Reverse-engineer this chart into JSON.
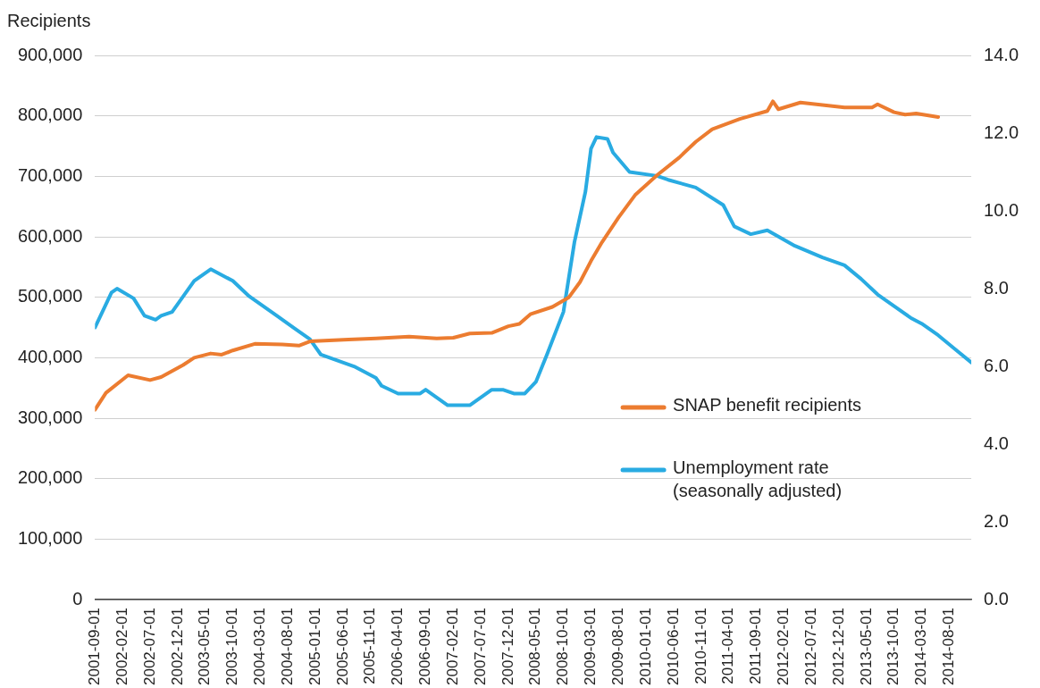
{
  "chart_data": {
    "type": "line",
    "ylabel": "Recipients",
    "xlim": [
      "2001-09-01",
      "2014-12-01"
    ],
    "xticks": [
      "2001-09-01",
      "2002-02-01",
      "2002-07-01",
      "2002-12-01",
      "2003-05-01",
      "2003-10-01",
      "2004-03-01",
      "2004-08-01",
      "2005-01-01",
      "2005-06-01",
      "2005-11-01",
      "2006-04-01",
      "2006-09-01",
      "2007-02-01",
      "2007-07-01",
      "2007-12-01",
      "2008-05-01",
      "2008-10-01",
      "2009-03-01",
      "2009-08-01",
      "2010-01-01",
      "2010-06-01",
      "2010-11-01",
      "2011-04-01",
      "2011-09-01",
      "2012-02-01",
      "2012-07-01",
      "2012-12-01",
      "2013-05-01",
      "2013-10-01",
      "2014-03-01",
      "2014-08-01"
    ],
    "ylim": [
      0,
      900000
    ],
    "yticks": [
      {
        "value": 0,
        "label": "0"
      },
      {
        "value": 100000,
        "label": "100,000"
      },
      {
        "value": 200000,
        "label": "200,000"
      },
      {
        "value": 300000,
        "label": "300,000"
      },
      {
        "value": 400000,
        "label": "400,000"
      },
      {
        "value": 500000,
        "label": "500,000"
      },
      {
        "value": 600000,
        "label": "600,000"
      },
      {
        "value": 700000,
        "label": "700,000"
      },
      {
        "value": 800000,
        "label": "800,000"
      },
      {
        "value": 900000,
        "label": "900,000"
      }
    ],
    "y2lim": [
      0,
      14
    ],
    "y2ticks": [
      {
        "value": 0,
        "label": "0.0"
      },
      {
        "value": 2,
        "label": "2.0"
      },
      {
        "value": 4,
        "label": "4.0"
      },
      {
        "value": 6,
        "label": "6.0"
      },
      {
        "value": 8,
        "label": "8.0"
      },
      {
        "value": 10,
        "label": "10.0"
      },
      {
        "value": 12,
        "label": "12.0"
      },
      {
        "value": 14,
        "label": "14.0"
      }
    ],
    "grid": "y",
    "legend": "bottom right",
    "marker": "none",
    "line_style": "solid",
    "series": [
      {
        "name": "SNAP benefit recipients",
        "color": "#ec7c30",
        "x": [
          "2001-09",
          "2001-11",
          "2002-03",
          "2002-07",
          "2002-09",
          "2003-01",
          "2003-03",
          "2003-06",
          "2003-08",
          "2003-10",
          "2004-02",
          "2004-07",
          "2004-10",
          "2004-12",
          "2005-07",
          "2005-12",
          "2006-06",
          "2006-11",
          "2007-02",
          "2007-05",
          "2007-09",
          "2007-12",
          "2008-02",
          "2008-04",
          "2008-08",
          "2008-11",
          "2009-01",
          "2009-03",
          "2009-05",
          "2009-08",
          "2009-11",
          "2010-03",
          "2010-07",
          "2010-10",
          "2011-01",
          "2011-06",
          "2011-11",
          "2011-12",
          "2012-01",
          "2012-05",
          "2012-09",
          "2013-01",
          "2013-06",
          "2013-07",
          "2013-10",
          "2013-12",
          "2014-02",
          "2014-06"
        ],
        "values": [
          314000,
          342000,
          371000,
          363000,
          368000,
          388000,
          400000,
          407000,
          405000,
          412000,
          423000,
          422000,
          420000,
          427000,
          430000,
          432000,
          435000,
          432000,
          433000,
          440000,
          441000,
          452000,
          456000,
          472000,
          484000,
          500000,
          525000,
          560000,
          591000,
          632000,
          669000,
          702000,
          731000,
          757000,
          778000,
          795000,
          808000,
          824000,
          811000,
          822000,
          818000,
          814000,
          814000,
          819000,
          806000,
          802000,
          804000,
          798000
        ]
      },
      {
        "name": "Unemployment rate (seasonally adjusted)",
        "color": "#29abe2",
        "axis": "y2",
        "x": [
          "2001-09",
          "2001-12",
          "2002-01",
          "2002-04",
          "2002-06",
          "2002-08",
          "2002-09",
          "2002-11",
          "2003-03",
          "2003-06",
          "2003-10",
          "2004-01",
          "2004-06",
          "2004-09",
          "2004-12",
          "2005-02",
          "2005-08",
          "2005-12",
          "2006-01",
          "2006-04",
          "2006-08",
          "2006-09",
          "2006-11",
          "2007-01",
          "2007-05",
          "2007-09",
          "2007-11",
          "2008-01",
          "2008-03",
          "2008-05",
          "2008-07",
          "2008-10",
          "2008-12",
          "2009-02",
          "2009-03",
          "2009-04",
          "2009-06",
          "2009-07",
          "2009-10",
          "2010-03",
          "2010-05",
          "2010-10",
          "2011-03",
          "2011-05",
          "2011-08",
          "2011-11",
          "2012-04",
          "2012-09",
          "2013-01",
          "2013-04",
          "2013-07",
          "2013-10",
          "2014-01",
          "2014-03",
          "2014-06",
          "2014-09",
          "2014-12"
        ],
        "values": [
          7.0,
          7.9,
          8.0,
          7.75,
          7.3,
          7.2,
          7.3,
          7.4,
          8.2,
          8.5,
          8.2,
          7.8,
          7.3,
          7.0,
          6.7,
          6.3,
          6.0,
          5.7,
          5.5,
          5.3,
          5.3,
          5.4,
          5.2,
          5.0,
          5.0,
          5.4,
          5.4,
          5.3,
          5.3,
          5.6,
          6.3,
          7.4,
          9.2,
          10.5,
          11.6,
          11.9,
          11.85,
          11.5,
          11.0,
          10.9,
          10.8,
          10.6,
          10.15,
          9.6,
          9.4,
          9.5,
          9.1,
          8.8,
          8.6,
          8.25,
          7.85,
          7.55,
          7.25,
          7.1,
          6.8,
          6.45,
          6.1
        ]
      }
    ]
  }
}
